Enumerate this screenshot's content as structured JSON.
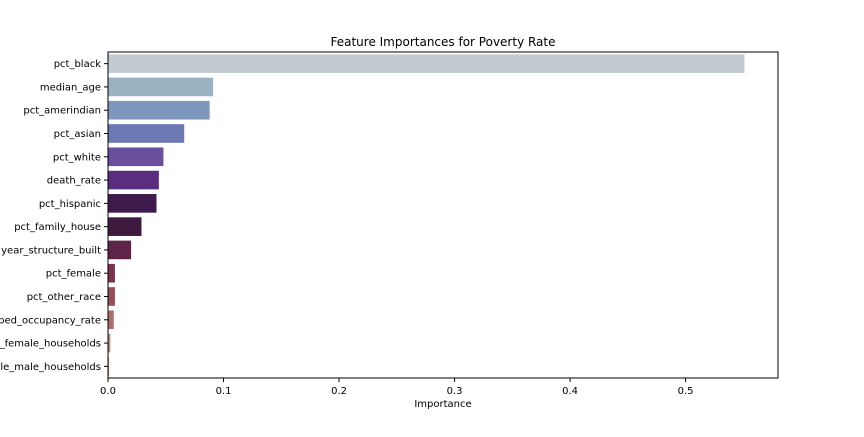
{
  "chart_data": {
    "type": "bar",
    "orientation": "horizontal",
    "title": "Feature Importances for Poverty Rate",
    "xlabel": "Importance",
    "ylabel": "",
    "xlim": [
      0,
      0.58
    ],
    "xticks": [
      0.0,
      0.1,
      0.2,
      0.3,
      0.4,
      0.5
    ],
    "xtick_labels": [
      "0.0",
      "0.1",
      "0.2",
      "0.3",
      "0.4",
      "0.5"
    ],
    "grid": false,
    "categories": [
      "pct_black",
      "median_age",
      "pct_amerindian",
      "pct_asian",
      "pct_white",
      "death_rate",
      "pct_hispanic",
      "pct_family_house",
      "year_structure_built",
      "pct_female",
      "pct_other_race",
      "ped_occupancy_rate",
      "_female_households",
      "le_male_households"
    ],
    "values": [
      0.551,
      0.091,
      0.088,
      0.066,
      0.048,
      0.044,
      0.042,
      0.029,
      0.02,
      0.006,
      0.006,
      0.005,
      0.002,
      0.001
    ],
    "colors": [
      "#c2cbd0",
      "#9bb2c3",
      "#7d98bc",
      "#6c78b1",
      "#6a4f9f",
      "#5a2d80",
      "#3f1a4c",
      "#3e1a3f",
      "#5e2448",
      "#7a334f",
      "#96505b",
      "#ad6f69",
      "#b88a7a",
      "#c3a595"
    ]
  }
}
